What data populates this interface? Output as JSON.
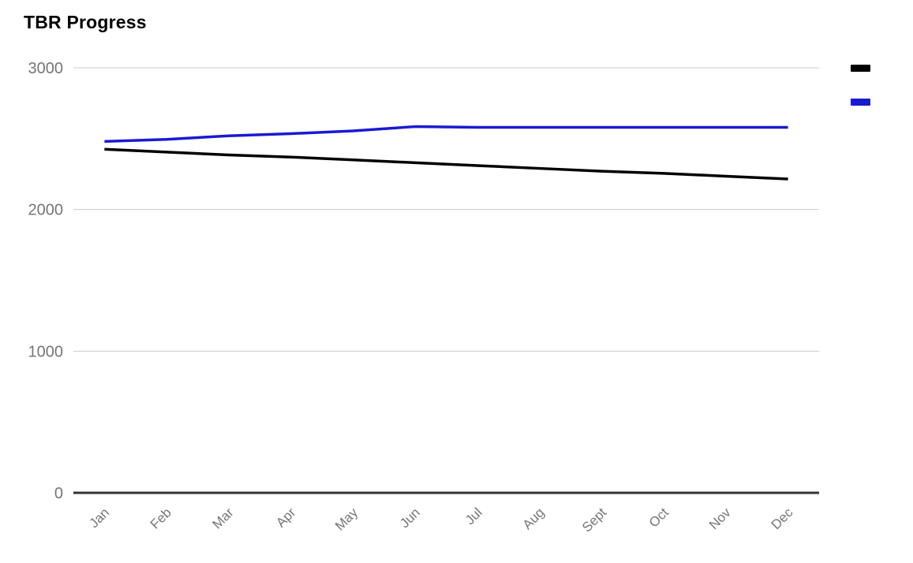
{
  "page": {
    "background": "#ffffff"
  },
  "chart_data": {
    "type": "line",
    "title": "TBR Progress",
    "categories": [
      "Jan",
      "Feb",
      "Mar",
      "Apr",
      "May",
      "Jun",
      "Jul",
      "Aug",
      "Sept",
      "Oct",
      "Nov",
      "Dec"
    ],
    "series": [
      {
        "name": "",
        "color": "#000000",
        "values": [
          2425,
          2405,
          2385,
          2370,
          2350,
          2330,
          2310,
          2290,
          2270,
          2255,
          2235,
          2215
        ]
      },
      {
        "name": "",
        "color": "#1a1ad2",
        "values": [
          2480,
          2495,
          2520,
          2535,
          2555,
          2585,
          2580,
          2580,
          2580,
          2580,
          2580,
          2580
        ]
      }
    ],
    "xlabel": "",
    "ylabel": "",
    "ylim": [
      0,
      3000
    ],
    "yticks": [
      0,
      1000,
      2000,
      3000
    ],
    "grid": true,
    "legend_position": "right"
  },
  "colors": {
    "grid_line": "#cccccc",
    "axis_line": "#333333",
    "tick_label": "#757575",
    "title_text": "#000000"
  }
}
